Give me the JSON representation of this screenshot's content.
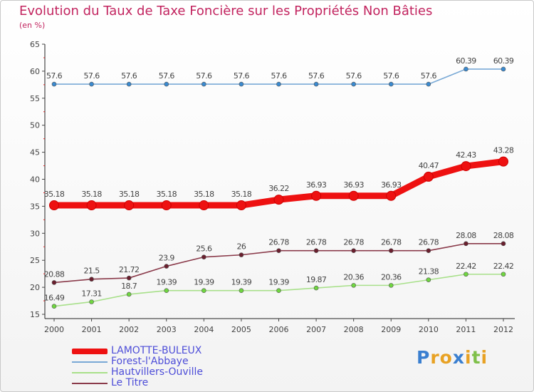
{
  "chart_data": {
    "type": "line",
    "title": "Evolution du Taux de Taxe Foncière sur les Propriétés Non Bâties",
    "unit_label": "(en %)",
    "xlabel": "",
    "ylabel": "(en %)",
    "ylim": [
      15,
      65
    ],
    "yticks": [
      15,
      20,
      25,
      30,
      35,
      40,
      45,
      50,
      55,
      60,
      65
    ],
    "categories": [
      "2000",
      "2001",
      "2002",
      "2003",
      "2004",
      "2005",
      "2006",
      "2007",
      "2008",
      "2009",
      "2010",
      "2011",
      "2012"
    ],
    "grid": false,
    "legend_position": "bottom-left",
    "series": [
      {
        "name": "LAMOTTE-BULEUX",
        "color": "#ee1111",
        "marker_color": "#ee1111",
        "emphasis": true,
        "values": [
          35.18,
          35.18,
          35.18,
          35.18,
          35.18,
          35.18,
          36.22,
          36.93,
          36.93,
          36.93,
          40.47,
          42.43,
          43.28
        ],
        "labels": [
          "35.18",
          "35.18",
          "35.18",
          "35.18",
          "35.18",
          "35.18",
          "36.22",
          "36.93",
          "36.93",
          "36.93",
          "40.47",
          "42.43",
          "43.28"
        ]
      },
      {
        "name": "Forest-l'Abbaye",
        "color": "#79a9d6",
        "marker_color": "#3a8ad0",
        "emphasis": false,
        "values": [
          57.6,
          57.6,
          57.6,
          57.6,
          57.6,
          57.6,
          57.6,
          57.6,
          57.6,
          57.6,
          57.6,
          60.39,
          60.39
        ],
        "labels": [
          "57.6",
          "57.6",
          "57.6",
          "57.6",
          "57.6",
          "57.6",
          "57.6",
          "57.6",
          "57.6",
          "57.6",
          "57.6",
          "60.39",
          "60.39"
        ]
      },
      {
        "name": "Hautvillers-Ouville",
        "color": "#a8e08a",
        "marker_color": "#6fd640",
        "emphasis": false,
        "values": [
          16.49,
          17.31,
          18.7,
          19.39,
          19.39,
          19.39,
          19.39,
          19.87,
          20.36,
          20.36,
          21.38,
          22.42,
          22.42
        ],
        "labels": [
          "16.49",
          "17.31",
          "18.7",
          "19.39",
          "19.39",
          "19.39",
          "19.39",
          "19.87",
          "20.36",
          "20.36",
          "21.38",
          "22.42",
          "22.42"
        ]
      },
      {
        "name": "Le Titre",
        "color": "#8a3a4a",
        "marker_color": "#6a1f2e",
        "emphasis": false,
        "values": [
          20.88,
          21.5,
          21.72,
          23.9,
          25.6,
          26,
          26.78,
          26.78,
          26.78,
          26.78,
          26.78,
          28.08,
          28.08
        ],
        "labels": [
          "20.88",
          "21.5",
          "21.72",
          "23.9",
          "25.6",
          "26",
          "26.78",
          "26.78",
          "26.78",
          "26.78",
          "26.78",
          "28.08",
          "28.08"
        ]
      }
    ]
  },
  "logo": {
    "letters": [
      "P",
      "r",
      "o",
      "x",
      "i",
      "t",
      "i"
    ],
    "colors": [
      "#3a7fd0",
      "#e8a224",
      "#e8a224",
      "#3a7fd0",
      "#e8a224",
      "#7fc04a",
      "#e8a224"
    ]
  }
}
